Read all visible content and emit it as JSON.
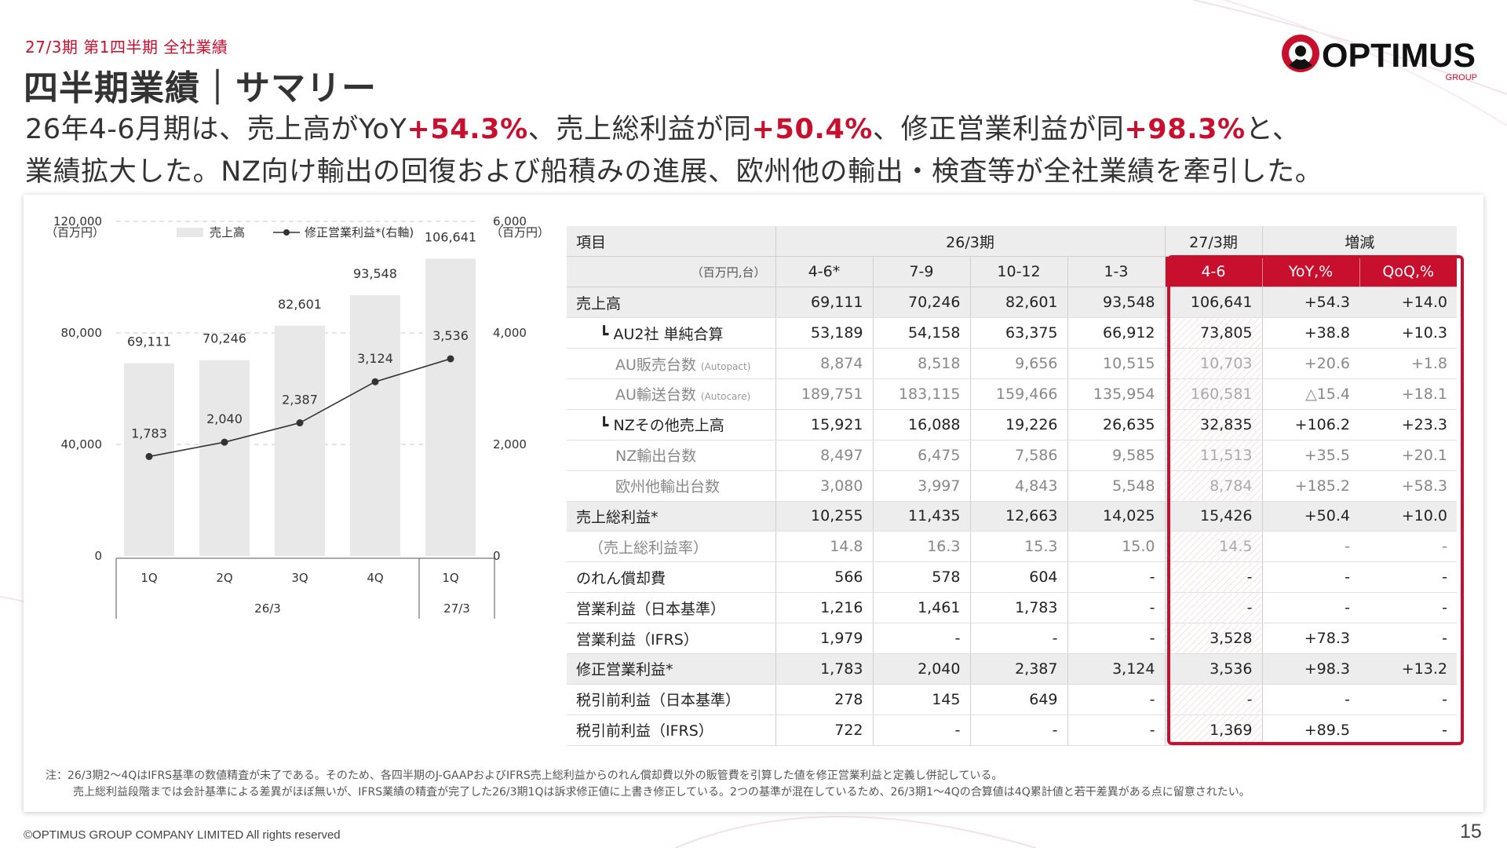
{
  "header": {
    "breadcrumb": "27/3期 第1四半期 全社業績",
    "title": "四半期業績｜サマリー",
    "logo_text": "OPTIMUS",
    "logo_sub": "GROUP"
  },
  "headline": {
    "l1_a": "26年4-6月期は、売上高がYoY",
    "l1_b": "+54.3%",
    "l1_c": "、売上総利益が同",
    "l1_d": "+50.4%",
    "l1_e": "、修正営業利益が同",
    "l1_f": "+98.3%",
    "l1_g": "と、",
    "l2": "業績拡大した。NZ向け輸出の回復および船積みの進展、欧州他の輸出・検査等が全社業績を牽引した。"
  },
  "chart_data": {
    "type": "bar",
    "categories": [
      "1Q",
      "2Q",
      "3Q",
      "4Q",
      "1Q"
    ],
    "groups": [
      {
        "label": "26/3",
        "categories": [
          "1Q",
          "2Q",
          "3Q",
          "4Q"
        ]
      },
      {
        "label": "27/3",
        "categories": [
          "1Q"
        ]
      }
    ],
    "left_unit": "（百万円）",
    "right_unit": "（百万円）",
    "left_ticks": [
      "120,000",
      "80,000",
      "40,000",
      "0"
    ],
    "right_ticks": [
      "6,000",
      "4,000",
      "2,000",
      "0"
    ],
    "ylim_left": [
      0,
      120000
    ],
    "ylim_right": [
      0,
      6000
    ],
    "bar_color": "#e8e8e8",
    "line_color": "#333333",
    "legend_position": "top",
    "series": [
      {
        "name": "売上高",
        "type": "bar",
        "axis": "left",
        "values": [
          69111,
          70246,
          82601,
          93548,
          106641
        ],
        "labels": [
          "69,111",
          "70,246",
          "82,601",
          "93,548",
          "106,641"
        ]
      },
      {
        "name": "修正営業利益*(右軸)",
        "type": "line",
        "axis": "right",
        "values": [
          1783,
          2040,
          2387,
          3124,
          3536
        ],
        "labels": [
          "1,783",
          "2,040",
          "2,387",
          "3,124",
          "3,536"
        ]
      }
    ]
  },
  "table": {
    "head1": {
      "item": "項目",
      "prev": "26/3期",
      "cur": "27/3期",
      "chg": "増減"
    },
    "head2": {
      "unit": "（百万円,台）",
      "p1": "4-6*",
      "p2": "7-9",
      "p3": "10-12",
      "p4": "1-3",
      "cur": "4-6",
      "yoy": "YoY,%",
      "qoq": "QoQ,%"
    },
    "rows": [
      {
        "label": "売上高",
        "sub": "",
        "values": [
          "69,111",
          "70,246",
          "82,601",
          "93,548",
          "106,641",
          "+54.3",
          "+14.0"
        ]
      },
      {
        "label": "┗ AU2社 単純合算",
        "sub": "",
        "values": [
          "53,189",
          "54,158",
          "63,375",
          "66,912",
          "73,805",
          "+38.8",
          "+10.3"
        ]
      },
      {
        "label": "AU販売台数",
        "sub": "(Autopact)",
        "values": [
          "8,874",
          "8,518",
          "9,656",
          "10,515",
          "10,703",
          "+20.6",
          "+1.8"
        ]
      },
      {
        "label": "AU輸送台数",
        "sub": "(Autocare)",
        "values": [
          "189,751",
          "183,115",
          "159,466",
          "135,954",
          "160,581",
          "△15.4",
          "+18.1"
        ]
      },
      {
        "label": "┗ NZその他売上高",
        "sub": "",
        "values": [
          "15,921",
          "16,088",
          "19,226",
          "26,635",
          "32,835",
          "+106.2",
          "+23.3"
        ]
      },
      {
        "label": "NZ輸出台数",
        "sub": "",
        "values": [
          "8,497",
          "6,475",
          "7,586",
          "9,585",
          "11,513",
          "+35.5",
          "+20.1"
        ]
      },
      {
        "label": "欧州他輸出台数",
        "sub": "",
        "values": [
          "3,080",
          "3,997",
          "4,843",
          "5,548",
          "8,784",
          "+185.2",
          "+58.3"
        ]
      },
      {
        "label": "売上総利益*",
        "sub": "",
        "values": [
          "10,255",
          "11,435",
          "12,663",
          "14,025",
          "15,426",
          "+50.4",
          "+10.0"
        ]
      },
      {
        "label": "（売上総利益率）",
        "sub": "",
        "values": [
          "14.8",
          "16.3",
          "15.3",
          "15.0",
          "14.5",
          "-",
          "-"
        ]
      },
      {
        "label": "のれん償却費",
        "sub": "",
        "values": [
          "566",
          "578",
          "604",
          "-",
          "-",
          "-",
          "-"
        ]
      },
      {
        "label": "営業利益（日本基準）",
        "sub": "",
        "values": [
          "1,216",
          "1,461",
          "1,783",
          "-",
          "-",
          "-",
          "-"
        ]
      },
      {
        "label": "営業利益（IFRS）",
        "sub": "",
        "values": [
          "1,979",
          "-",
          "-",
          "-",
          "3,528",
          "+78.3",
          "-"
        ]
      },
      {
        "label": "修正営業利益*",
        "sub": "",
        "values": [
          "1,783",
          "2,040",
          "2,387",
          "3,124",
          "3,536",
          "+98.3",
          "+13.2"
        ]
      },
      {
        "label": "税引前利益（日本基準）",
        "sub": "",
        "values": [
          "278",
          "145",
          "649",
          "-",
          "-",
          "-",
          "-"
        ]
      },
      {
        "label": "税引前利益（IFRS）",
        "sub": "",
        "values": [
          "722",
          "-",
          "-",
          "-",
          "1,369",
          "+89.5",
          "-"
        ]
      }
    ]
  },
  "note": {
    "line1": "注：26/3期2～4QはIFRS基準の数値精査が未了である。そのため、各四半期のJ-GAAPおよびIFRS売上総利益からのれん償却費以外の販管費を引算した値を修正営業利益と定義し併記している。",
    "line2": "売上総利益段階までは会計基準による差異がほぼ無いが、IFRS業績の精査が完了した26/3期1Qは訴求修正値に上書き修正している。2つの基準が混在しているため、26/3期1～4Qの合算値は4Q累計値と若干差異がある点に留意されたい。"
  },
  "footer": {
    "copyright": "©OPTIMUS GROUP COMPANY LIMITED All rights reserved",
    "page": "15"
  },
  "colors": {
    "accent": "#c8102e",
    "text": "#333333",
    "bar": "#e8e8e8",
    "header_bg": "#ededed"
  }
}
